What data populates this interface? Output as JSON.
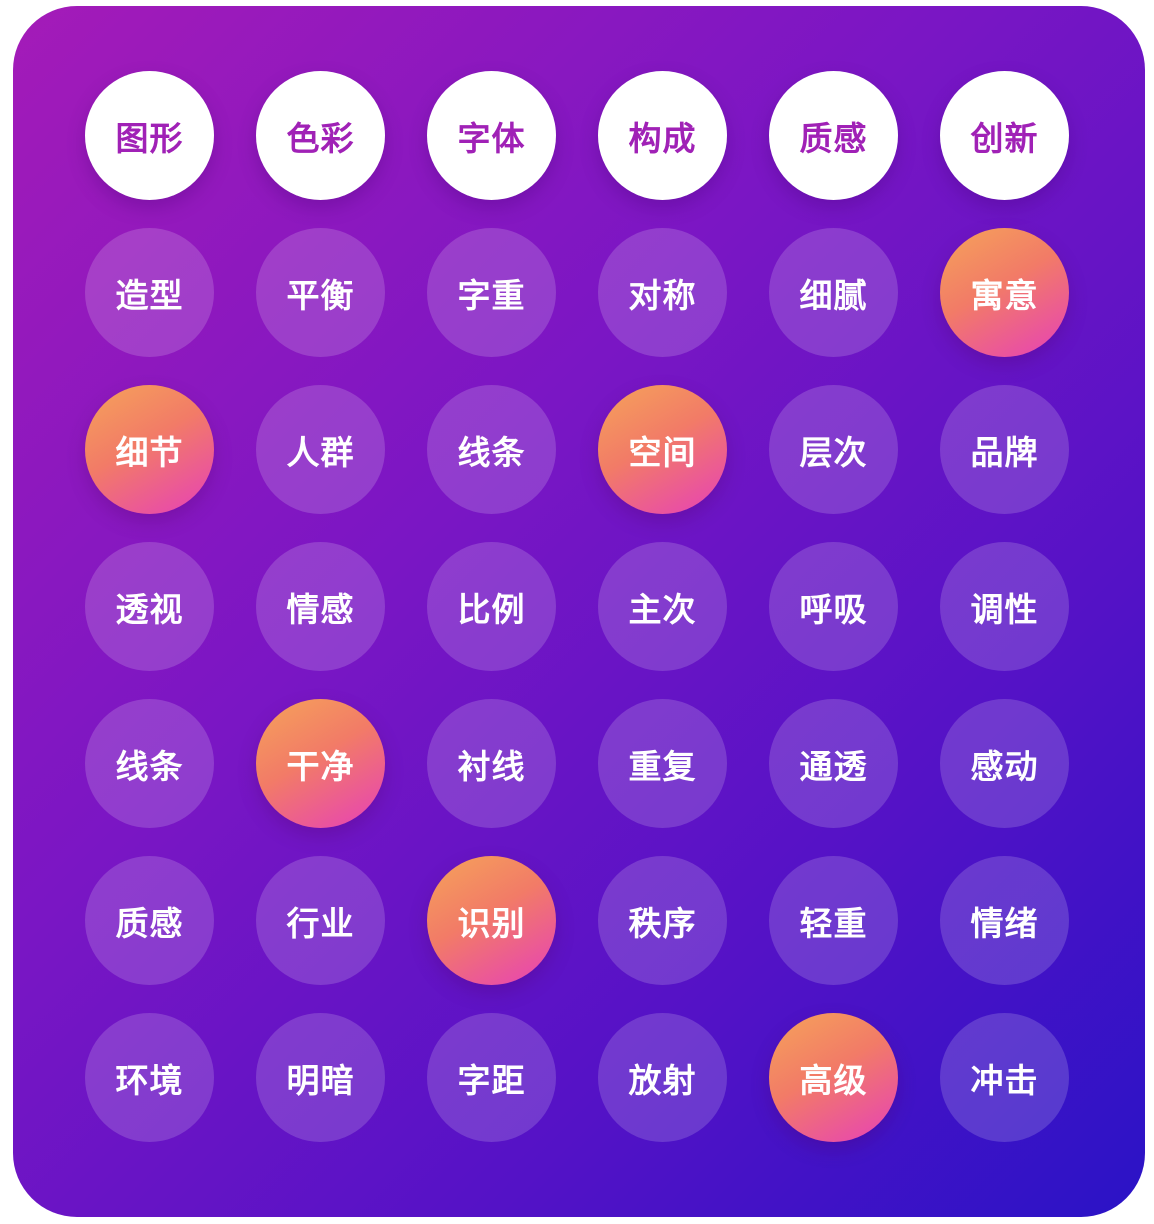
{
  "rows": [
    [
      {
        "label": "图形",
        "style": "white"
      },
      {
        "label": "色彩",
        "style": "white"
      },
      {
        "label": "字体",
        "style": "white"
      },
      {
        "label": "构成",
        "style": "white"
      },
      {
        "label": "质感",
        "style": "white"
      },
      {
        "label": "创新",
        "style": "white"
      }
    ],
    [
      {
        "label": "造型",
        "style": "soft"
      },
      {
        "label": "平衡",
        "style": "soft"
      },
      {
        "label": "字重",
        "style": "soft"
      },
      {
        "label": "对称",
        "style": "soft"
      },
      {
        "label": "细腻",
        "style": "soft"
      },
      {
        "label": "寓意",
        "style": "hot"
      }
    ],
    [
      {
        "label": "细节",
        "style": "hot"
      },
      {
        "label": "人群",
        "style": "soft"
      },
      {
        "label": "线条",
        "style": "soft"
      },
      {
        "label": "空间",
        "style": "hot"
      },
      {
        "label": "层次",
        "style": "soft"
      },
      {
        "label": "品牌",
        "style": "soft"
      }
    ],
    [
      {
        "label": "透视",
        "style": "soft"
      },
      {
        "label": "情感",
        "style": "soft"
      },
      {
        "label": "比例",
        "style": "soft"
      },
      {
        "label": "主次",
        "style": "soft"
      },
      {
        "label": "呼吸",
        "style": "soft"
      },
      {
        "label": "调性",
        "style": "soft"
      }
    ],
    [
      {
        "label": "线条",
        "style": "soft"
      },
      {
        "label": "干净",
        "style": "hot"
      },
      {
        "label": "衬线",
        "style": "soft"
      },
      {
        "label": "重复",
        "style": "soft"
      },
      {
        "label": "通透",
        "style": "soft"
      },
      {
        "label": "感动",
        "style": "soft"
      }
    ],
    [
      {
        "label": "质感",
        "style": "soft"
      },
      {
        "label": "行业",
        "style": "soft"
      },
      {
        "label": "识别",
        "style": "hot"
      },
      {
        "label": "秩序",
        "style": "soft"
      },
      {
        "label": "轻重",
        "style": "soft"
      },
      {
        "label": "情绪",
        "style": "soft"
      }
    ],
    [
      {
        "label": "环境",
        "style": "soft"
      },
      {
        "label": "明暗",
        "style": "soft"
      },
      {
        "label": "字距",
        "style": "soft"
      },
      {
        "label": "放射",
        "style": "soft"
      },
      {
        "label": "高级",
        "style": "hot"
      },
      {
        "label": "冲击",
        "style": "soft"
      }
    ]
  ]
}
